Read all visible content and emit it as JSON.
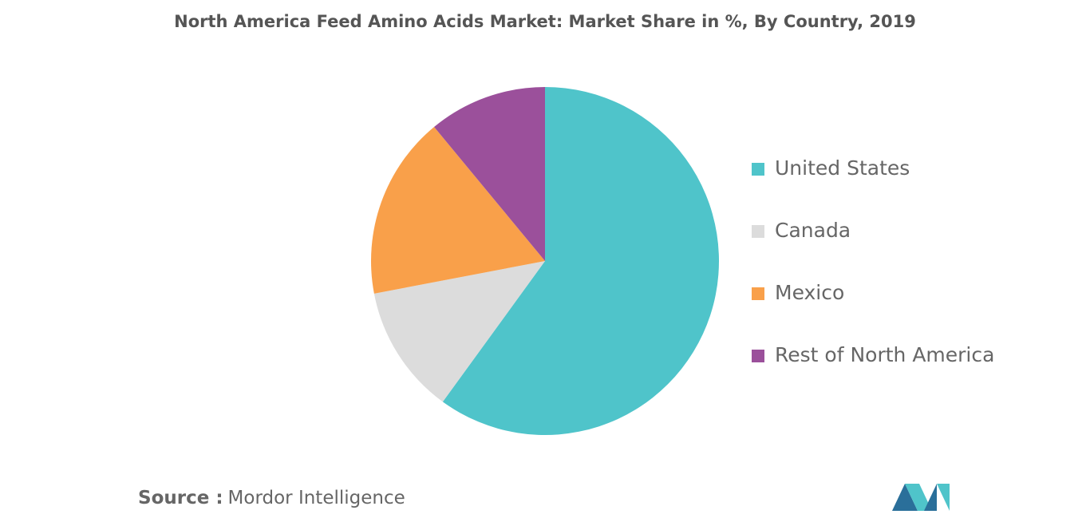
{
  "chart_data": {
    "type": "pie",
    "title": "North America Feed Amino Acids Market: Market Share in %, By Country, 2019",
    "categories": [
      "United States",
      "Canada",
      "Mexico",
      "Rest of North America"
    ],
    "values": [
      60,
      12,
      17,
      11
    ],
    "colors": [
      "#4fc4ca",
      "#dcdcdc",
      "#f9a04a",
      "#9b509b"
    ]
  },
  "source": {
    "label": "Source :",
    "text": "Mordor Intelligence"
  }
}
